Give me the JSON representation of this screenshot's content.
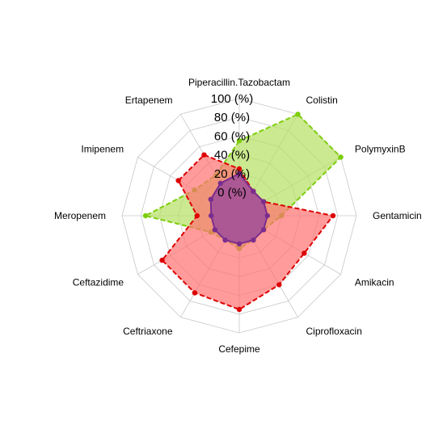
{
  "chart_data": {
    "type": "radar",
    "axes": [
      "Piperacillin.Tazobactam",
      "Colistin",
      "PolymyxinB",
      "Gentamicin",
      "Amikacin",
      "Ciprofloxacin",
      "Cefepime",
      "Ceftriaxone",
      "Ceftazidime",
      "Meropenem",
      "Imipenem",
      "Ertapenem"
    ],
    "ticks": [
      "0 (%)",
      "20 (%)",
      "40 (%)",
      "60 (%)",
      "80 (%)",
      "100 (%)"
    ],
    "range": [
      0,
      100
    ],
    "grid": true,
    "series": [
      {
        "color": "#7ccd0c",
        "fill": "#b5e061",
        "line_style": "dashed",
        "values": [
          55,
          100,
          100,
          20,
          5,
          5,
          10,
          5,
          10,
          75,
          30,
          25
        ]
      },
      {
        "color": "#dd0000",
        "fill": "#ff7070",
        "line_style": "dashed",
        "values": [
          25,
          5,
          5,
          75,
          55,
          60,
          75,
          70,
          70,
          20,
          50,
          50
        ]
      },
      {
        "color": "#7b2d8e",
        "fill": "#8e3fa0",
        "line_style": "solid",
        "values": [
          20,
          5,
          5,
          5,
          5,
          5,
          5,
          5,
          5,
          5,
          10,
          15
        ]
      }
    ]
  }
}
